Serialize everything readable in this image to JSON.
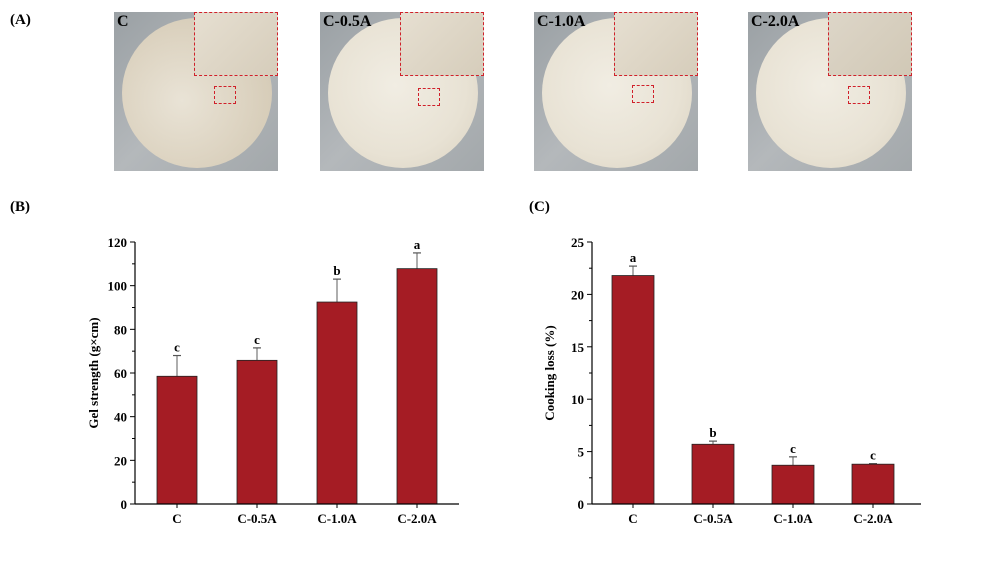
{
  "panels": {
    "a": "(A)",
    "b": "(B)",
    "c": "(C)"
  },
  "photos": [
    {
      "label": "C"
    },
    {
      "label": "C-0.5A"
    },
    {
      "label": "C-1.0A"
    },
    {
      "label": "C-2.0A"
    }
  ],
  "colors": {
    "bar": "#a51c24",
    "inset_border": "#d0202a"
  },
  "chart_data": [
    {
      "type": "bar",
      "categories": [
        "C",
        "C-0.5A",
        "C-1.0A",
        "C-2.0A"
      ],
      "values": [
        58.5,
        65.8,
        92.5,
        107.8
      ],
      "error_upper": [
        68,
        71.5,
        103,
        115
      ],
      "significance": [
        "c",
        "c",
        "b",
        "a"
      ],
      "xlabel": "",
      "ylabel": "Gel strength (g×cm)",
      "ylim": [
        0,
        120
      ],
      "yticks": [
        0,
        20,
        40,
        60,
        80,
        100,
        120
      ],
      "grid": false
    },
    {
      "type": "bar",
      "categories": [
        "C",
        "C-0.5A",
        "C-1.0A",
        "C-2.0A"
      ],
      "values": [
        21.8,
        5.7,
        3.7,
        3.8
      ],
      "error_upper": [
        22.7,
        6.0,
        4.5,
        3.85
      ],
      "significance": [
        "a",
        "b",
        "c",
        "c"
      ],
      "xlabel": "",
      "ylabel": "Cooking loss (%)",
      "ylim": [
        0,
        25
      ],
      "yticks": [
        0,
        5,
        10,
        15,
        20,
        25
      ],
      "grid": false
    }
  ]
}
